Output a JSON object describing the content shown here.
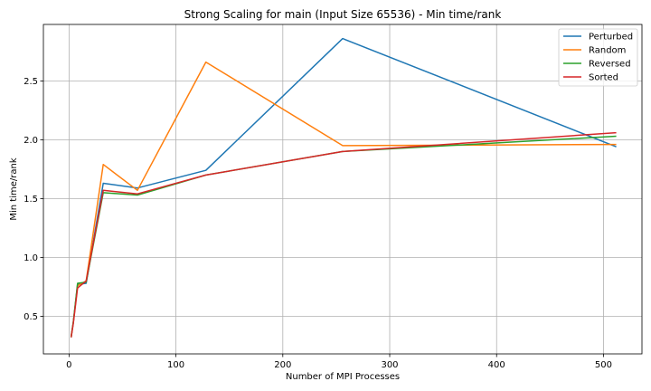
{
  "chart_data": {
    "type": "line",
    "title": "Strong Scaling for main (Input Size 65536) - Min time/rank",
    "xlabel": "Number of MPI Processes",
    "ylabel": "Min time/rank",
    "xlim": [
      -24,
      536
    ],
    "ylim": [
      0.18,
      2.98
    ],
    "xticks": [
      0,
      100,
      200,
      300,
      400,
      500
    ],
    "yticks": [
      0.5,
      1.0,
      1.5,
      2.0,
      2.5
    ],
    "ytick_labels": [
      "0.5",
      "1.0",
      "1.5",
      "2.0",
      "2.5"
    ],
    "grid": true,
    "legend_position": "top-right",
    "x": [
      2,
      4,
      8,
      16,
      32,
      64,
      128,
      256,
      512
    ],
    "series": [
      {
        "name": "Perturbed",
        "color": "#1f77b4",
        "values": [
          0.33,
          0.45,
          0.77,
          0.78,
          1.63,
          1.59,
          1.74,
          2.86,
          1.94
        ]
      },
      {
        "name": "Random",
        "color": "#ff7f0e",
        "values": [
          0.33,
          0.45,
          0.76,
          0.8,
          1.79,
          1.57,
          2.66,
          1.95,
          1.96
        ]
      },
      {
        "name": "Reversed",
        "color": "#2ca02c",
        "values": [
          0.32,
          0.45,
          0.78,
          0.79,
          1.55,
          1.53,
          1.7,
          1.9,
          2.03
        ]
      },
      {
        "name": "Sorted",
        "color": "#d62728",
        "values": [
          0.32,
          0.44,
          0.74,
          0.8,
          1.57,
          1.54,
          1.7,
          1.9,
          2.06
        ]
      }
    ]
  }
}
